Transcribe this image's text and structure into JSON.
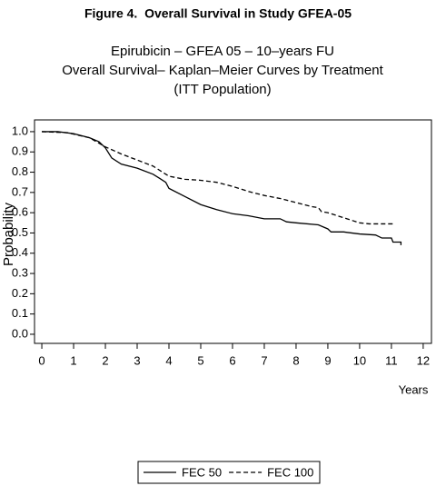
{
  "chart_data": {
    "type": "line",
    "title": "Figure 4.  Overall Survival in Study GFEA-05",
    "subtitle": [
      "Epirubicin – GFEA 05 – 10–years FU",
      "Overall Survival– Kaplan–Meier Curves by Treatment",
      "(ITT Population)"
    ],
    "xlabel": "Years",
    "ylabel": "Probability",
    "xlim": [
      -0.23,
      12.26
    ],
    "ylim": [
      -0.045,
      1.058
    ],
    "xticks": [
      0,
      1,
      2,
      3,
      4,
      5,
      6,
      7,
      8,
      9,
      10,
      11,
      12
    ],
    "yticks": [
      {
        "value": 0,
        "label": "0.0"
      },
      0.1,
      0.2,
      0.3,
      0.4,
      0.5,
      0.6,
      0.7,
      0.8,
      0.9,
      {
        "value": 1,
        "label": "1.0"
      }
    ],
    "legend": "bottom",
    "series": [
      {
        "name": "FEC 50",
        "color": "#000000",
        "line_style": "solid",
        "x": [
          0,
          0.5,
          1.0,
          1.5,
          1.8,
          2.0,
          2.2,
          2.5,
          3.0,
          3.5,
          3.7,
          3.9,
          4.0,
          4.5,
          5.0,
          5.5,
          6.0,
          6.5,
          7.0,
          7.5,
          7.7,
          8.0,
          8.7,
          9.0,
          9.1,
          9.5,
          10.0,
          10.5,
          10.7,
          11.0,
          11.05,
          11.3,
          11.3
        ],
        "values": [
          1.0,
          1.0,
          0.99,
          0.97,
          0.95,
          0.92,
          0.87,
          0.84,
          0.82,
          0.79,
          0.77,
          0.75,
          0.72,
          0.68,
          0.64,
          0.615,
          0.595,
          0.585,
          0.57,
          0.57,
          0.555,
          0.55,
          0.54,
          0.52,
          0.505,
          0.505,
          0.495,
          0.49,
          0.475,
          0.475,
          0.455,
          0.455,
          0.44
        ]
      },
      {
        "name": "FEC 100",
        "color": "#000000",
        "line_style": "dashed",
        "x": [
          0,
          0.8,
          1.5,
          2.0,
          2.5,
          3.0,
          3.5,
          4.0,
          4.5,
          5.0,
          5.5,
          6.0,
          6.5,
          7.0,
          7.5,
          8.0,
          8.5,
          8.7,
          8.8,
          9.0,
          9.5,
          10.0,
          10.3,
          11.1
        ],
        "values": [
          1.0,
          0.995,
          0.97,
          0.925,
          0.89,
          0.86,
          0.83,
          0.78,
          0.765,
          0.76,
          0.75,
          0.73,
          0.705,
          0.685,
          0.67,
          0.65,
          0.63,
          0.625,
          0.605,
          0.6,
          0.575,
          0.55,
          0.545,
          0.545
        ]
      }
    ]
  }
}
